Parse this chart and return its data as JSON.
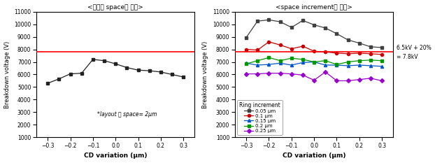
{
  "left_title": "<등간격 space인 경우>",
  "right_title": "<space increment인 경우>",
  "xlabel": "CD variation (μm)",
  "ylabel": "Breakdown voltage (V)",
  "xlim": [
    -0.35,
    0.35
  ],
  "ylim": [
    1000,
    11000
  ],
  "yticks": [
    1000,
    2000,
    3000,
    4000,
    5000,
    6000,
    7000,
    8000,
    9000,
    10000,
    11000
  ],
  "xticks": [
    -0.3,
    -0.2,
    -0.1,
    0.0,
    0.1,
    0.2,
    0.3
  ],
  "hline_y": 7800,
  "left_annotation_line1": "*layout 상 space= 2μm",
  "right_annotation_line1": "6.5kV + 20%",
  "right_annotation_line2": "= 7.8kV",
  "left_x": [
    -0.3,
    -0.25,
    -0.2,
    -0.15,
    -0.1,
    -0.05,
    0.0,
    0.05,
    0.1,
    0.15,
    0.2,
    0.25,
    0.3
  ],
  "left_y": [
    5300,
    5650,
    6050,
    6100,
    7200,
    7100,
    6850,
    6550,
    6350,
    6300,
    6200,
    6000,
    5800
  ],
  "right_x": [
    -0.3,
    -0.25,
    -0.2,
    -0.15,
    -0.1,
    -0.05,
    0.0,
    0.05,
    0.1,
    0.15,
    0.2,
    0.25,
    0.3
  ],
  "series_order": [
    "0.05 μm",
    "0.1 μm",
    "0.15 μm",
    "0.2 μm",
    "0.25 μm"
  ],
  "series": {
    "0.05 μm": {
      "color": "#404040",
      "marker": "s",
      "y": [
        8950,
        10250,
        10350,
        10200,
        9750,
        10300,
        9950,
        9700,
        9250,
        8750,
        8500,
        8200,
        8150
      ]
    },
    "0.1 μm": {
      "color": "#cc0000",
      "marker": "o",
      "y": [
        8000,
        7950,
        8600,
        8350,
        8050,
        8250,
        7850,
        7800,
        7700,
        7650,
        7700,
        7650,
        7600
      ]
    },
    "0.15 μm": {
      "color": "#0055cc",
      "marker": "^",
      "y": [
        6900,
        6750,
        6800,
        6900,
        6750,
        6950,
        7000,
        6750,
        6750,
        6700,
        6750,
        6700,
        6650
      ]
    },
    "0.2 μm": {
      "color": "#009900",
      "marker": "s",
      "y": [
        6850,
        7100,
        7350,
        7100,
        7300,
        7200,
        7000,
        7100,
        6800,
        7000,
        7100,
        7150,
        7100
      ]
    },
    "0.25 μm": {
      "color": "#9900cc",
      "marker": "D",
      "y": [
        6050,
        6050,
        6100,
        6100,
        6050,
        5950,
        5550,
        6200,
        5500,
        5500,
        5600,
        5700,
        5500
      ]
    }
  },
  "legend_title": "Ring increment",
  "background_color": "#ffffff"
}
